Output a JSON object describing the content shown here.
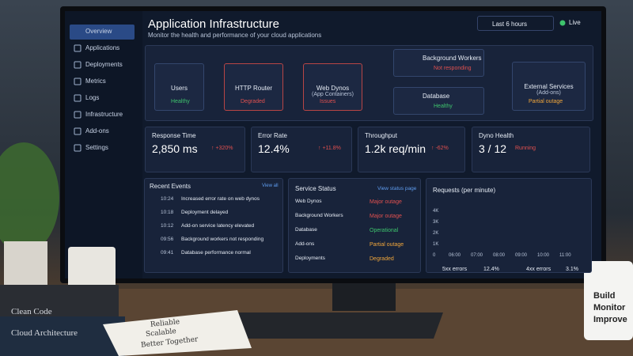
{
  "sidebar": [
    "Overview",
    "Applications",
    "Deployments",
    "Metrics",
    "Logs",
    "Infrastructure",
    "Add-ons",
    "Settings"
  ],
  "header": {
    "title": "Application Infrastructure",
    "subtitle": "Monitor the health and performance of your cloud applications",
    "time_range": "Last 6 hours",
    "live": "Live"
  },
  "nodes": [
    {
      "label": "Users",
      "status": "Healthy"
    },
    {
      "label": "HTTP Router",
      "status": "Degraded"
    },
    {
      "label": "Web Dynos",
      "sublabel": "(App Containers)",
      "status": "Issues"
    },
    {
      "label": "Background Workers",
      "status": "Not responding"
    },
    {
      "label": "Database",
      "status": "Healthy"
    },
    {
      "label": "External Services",
      "sublabel": "(Add-ons)",
      "status": "Partial outage"
    }
  ],
  "metrics": [
    {
      "label": "Response Time",
      "value": "2,850 ms",
      "change": "↑ +320%"
    },
    {
      "label": "Error Rate",
      "value": "12.4%",
      "change": "↑ +11.8%"
    },
    {
      "label": "Throughput",
      "value": "1.2k req/min",
      "change": "↑ -62%"
    },
    {
      "label": "Dyno Health",
      "value": "3 / 12",
      "change": "Running"
    }
  ],
  "recent_events": {
    "title": "Recent Events",
    "link": "View all",
    "items": [
      [
        "10:24",
        "Increased error rate on web dynos"
      ],
      [
        "10:18",
        "Deployment delayed"
      ],
      [
        "10:12",
        "Add-on service latency elevated"
      ],
      [
        "09:56",
        "Background workers not responding"
      ],
      [
        "09:41",
        "Database performance normal"
      ]
    ]
  },
  "service_status": {
    "title": "Service Status",
    "link": "View status page",
    "items": [
      [
        "Web Dynos",
        "Major outage"
      ],
      [
        "Background Workers",
        "Major outage"
      ],
      [
        "Database",
        "Operational"
      ],
      [
        "Add-ons",
        "Partial outage"
      ],
      [
        "Deployments",
        "Degraded"
      ]
    ]
  },
  "requests": {
    "title": "Requests (per minute)",
    "yticks": [
      "4K",
      "3K",
      "2K",
      "1K",
      "0"
    ],
    "xticks": [
      "06:00",
      "07:00",
      "08:00",
      "09:00",
      "10:00",
      "11:00"
    ],
    "legend": [
      [
        "5xx errors",
        "12.4%"
      ],
      [
        "4xx errors",
        "3.1%"
      ]
    ]
  },
  "desk": {
    "books": [
      "Clean Code",
      "Cloud Architecture"
    ],
    "notebook": [
      "Reliable",
      "Scalable",
      "Better Together"
    ],
    "mug": [
      "Build",
      "Monitor",
      "Improve"
    ]
  }
}
